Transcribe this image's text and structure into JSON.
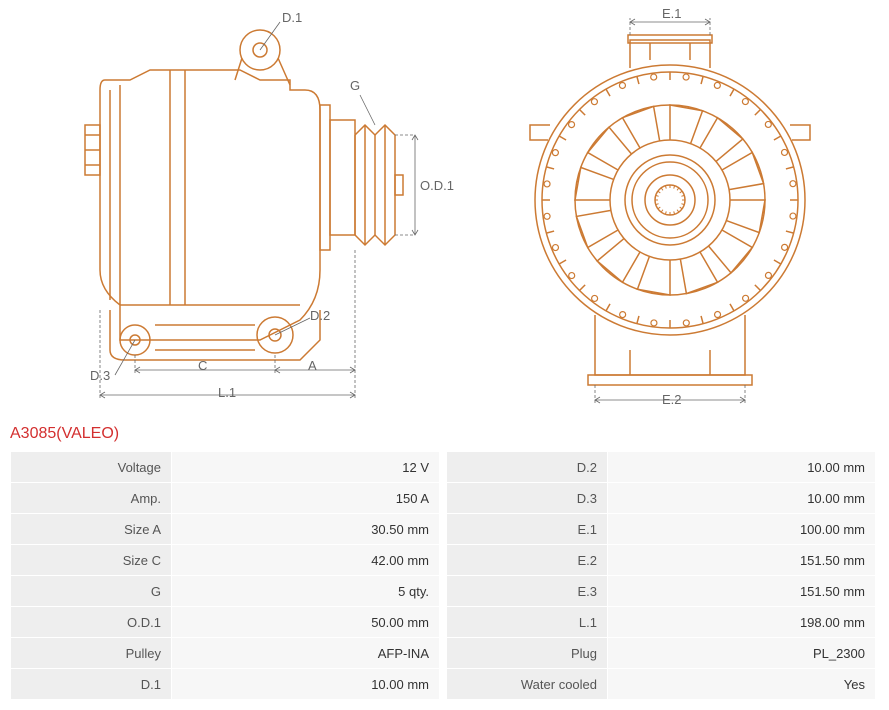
{
  "title": "A3085(VALEO)",
  "title_color": "#d32f2f",
  "stroke_color": "#cc7a33",
  "label_color": "#666666",
  "table": {
    "bg_label": "#eeeeee",
    "bg_value": "#f7f7f7"
  },
  "diagrams": {
    "side": {
      "labels": {
        "D1": "D.1",
        "D2": "D.2",
        "D3": "D.3",
        "G": "G",
        "OD1": "O.D.1",
        "A": "A",
        "C": "C",
        "L1": "L.1"
      }
    },
    "front": {
      "labels": {
        "E1": "E.1",
        "E2": "E.2"
      }
    }
  },
  "specs_left": [
    {
      "label": "Voltage",
      "value": "12 V"
    },
    {
      "label": "Amp.",
      "value": "150 A"
    },
    {
      "label": "Size A",
      "value": "30.50 mm"
    },
    {
      "label": "Size C",
      "value": "42.00 mm"
    },
    {
      "label": "G",
      "value": "5 qty."
    },
    {
      "label": "O.D.1",
      "value": "50.00 mm"
    },
    {
      "label": "Pulley",
      "value": "AFP-INA"
    },
    {
      "label": "D.1",
      "value": "10.00 mm"
    }
  ],
  "specs_right": [
    {
      "label": "D.2",
      "value": "10.00 mm"
    },
    {
      "label": "D.3",
      "value": "10.00 mm"
    },
    {
      "label": "E.1",
      "value": "100.00 mm"
    },
    {
      "label": "E.2",
      "value": "151.50 mm"
    },
    {
      "label": "E.3",
      "value": "151.50 mm"
    },
    {
      "label": "L.1",
      "value": "198.00 mm"
    },
    {
      "label": "Plug",
      "value": "PL_2300"
    },
    {
      "label": "Water cooled",
      "value": "Yes"
    }
  ]
}
